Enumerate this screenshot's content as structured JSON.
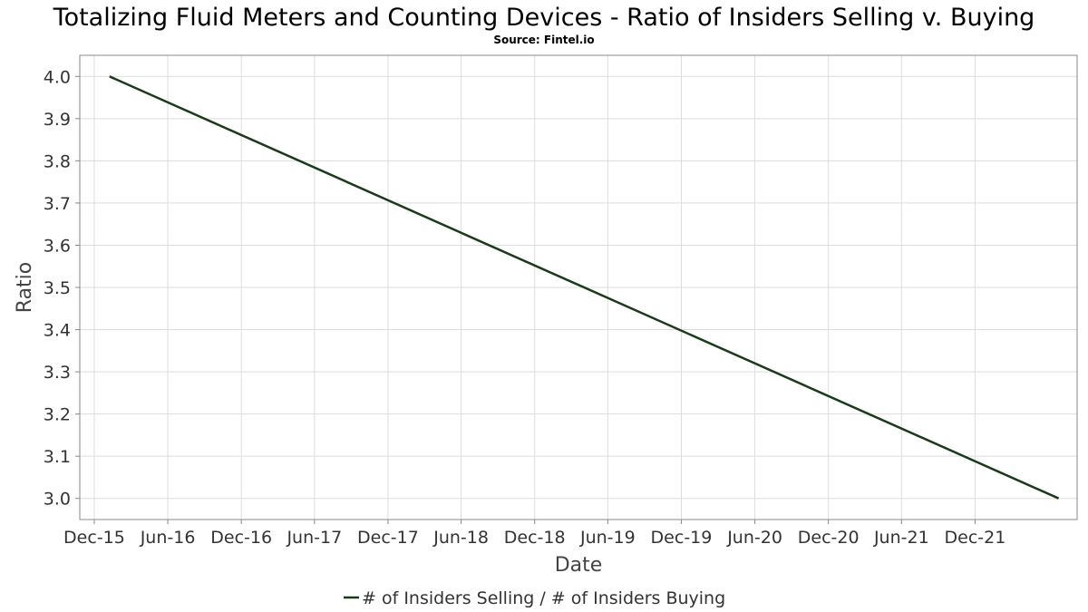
{
  "chart_data": {
    "type": "line",
    "title": "Totalizing Fluid Meters and Counting Devices - Ratio of Insiders Selling v. Buying",
    "subtitle": "Source: Fintel.io",
    "xlabel": "Date",
    "ylabel": "Ratio",
    "x_ticks": [
      "Dec-15",
      "Jun-16",
      "Dec-16",
      "Jun-17",
      "Dec-17",
      "Jun-18",
      "Dec-18",
      "Jun-19",
      "Dec-19",
      "Jun-20",
      "Dec-20",
      "Jun-21",
      "Dec-21"
    ],
    "y_ticks": [
      "3.0",
      "3.1",
      "3.2",
      "3.3",
      "3.4",
      "3.5",
      "3.6",
      "3.7",
      "3.8",
      "3.9",
      "4.0"
    ],
    "xlim": [
      "2015-10-26",
      "2022-08-12"
    ],
    "ylim": [
      2.95,
      4.05
    ],
    "grid": true,
    "legend_position": "bottom-center",
    "series": [
      {
        "name": "# of Insiders Selling / # of Insiders Buying",
        "color": "#1a3a1a",
        "points": [
          {
            "x": "2016-01-08",
            "y": 4.0
          },
          {
            "x": "2022-06-27",
            "y": 3.0
          }
        ]
      }
    ]
  }
}
